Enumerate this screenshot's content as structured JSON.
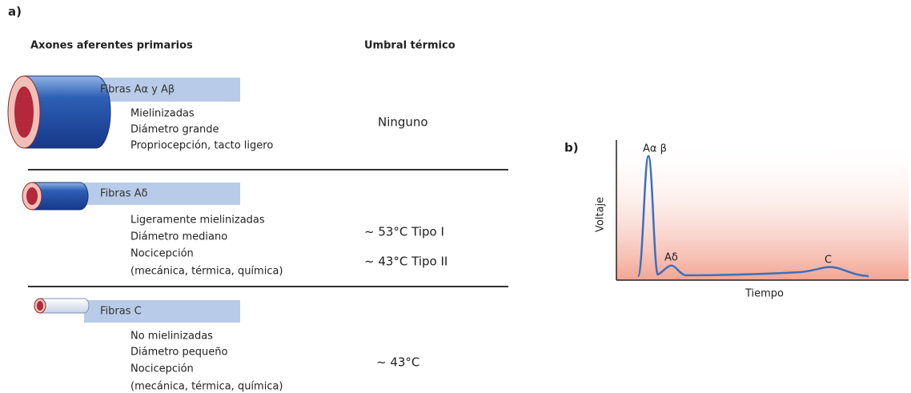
{
  "panel_a": {
    "label": "a)",
    "headers": [
      "Axones aferentes primarios",
      "Umbral térmico"
    ],
    "rows": [
      {
        "fiber": "Fibras Aα y Aβ",
        "properties": [
          "Mielinizadas",
          "Diámetro grande",
          "Propriocepción, tacto ligero"
        ],
        "thresholds": [
          "Ninguno"
        ]
      },
      {
        "fiber": "Fibras Aδ",
        "properties": [
          "Ligeramente mielinizadas",
          "Diámetro mediano",
          "Nocicepción",
          "(mecánica, térmica, química)"
        ],
        "thresholds": [
          "~ 53°C Tipo I",
          "~ 43°C Tipo II"
        ]
      },
      {
        "fiber": "Fibras C",
        "properties": [
          "No mielinizadas",
          "Diámetro pequeño",
          "Nocicepción",
          "(mecánica, térmica, química)"
        ],
        "thresholds": [
          "~ 43°C"
        ]
      }
    ]
  },
  "panel_b": {
    "label": "b)",
    "peak_labels": [
      "Aα β",
      "Aδ",
      "C"
    ],
    "y_axis_label": "Voltaje",
    "x_axis_label": "Tiempo"
  }
}
